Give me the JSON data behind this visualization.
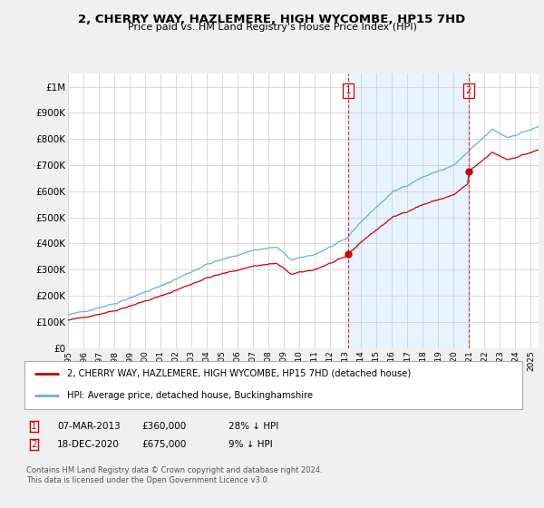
{
  "title": "2, CHERRY WAY, HAZLEMERE, HIGH WYCOMBE, HP15 7HD",
  "subtitle": "Price paid vs. HM Land Registry's House Price Index (HPI)",
  "ylabel_ticks": [
    "£0",
    "£100K",
    "£200K",
    "£300K",
    "£400K",
    "£500K",
    "£600K",
    "£700K",
    "£800K",
    "£900K",
    "£1M"
  ],
  "ytick_values": [
    0,
    100000,
    200000,
    300000,
    400000,
    500000,
    600000,
    700000,
    800000,
    900000,
    1000000
  ],
  "ylim": [
    0,
    1050000
  ],
  "xlim_start": 1995.0,
  "xlim_end": 2025.5,
  "hpi_color": "#6baed6",
  "price_color": "#cc0000",
  "shade_color": "#ddeeff",
  "bg_color": "#f0f0f0",
  "plot_bg_color": "#ffffff",
  "sale1_year": 2013.18,
  "sale1_price": 360000,
  "sale1_label": "07-MAR-2013",
  "sale1_pct": "28% ↓ HPI",
  "sale2_year": 2020.96,
  "sale2_price": 675000,
  "sale2_label": "18-DEC-2020",
  "sale2_pct": "9% ↓ HPI",
  "legend_line1": "2, CHERRY WAY, HAZLEMERE, HIGH WYCOMBE, HP15 7HD (detached house)",
  "legend_line2": "HPI: Average price, detached house, Buckinghamshire",
  "footer1": "Contains HM Land Registry data © Crown copyright and database right 2024.",
  "footer2": "This data is licensed under the Open Government Licence v3.0.",
  "xtick_years": [
    1995,
    1996,
    1997,
    1998,
    1999,
    2000,
    2001,
    2002,
    2003,
    2004,
    2005,
    2006,
    2007,
    2008,
    2009,
    2010,
    2011,
    2012,
    2013,
    2014,
    2015,
    2016,
    2017,
    2018,
    2019,
    2020,
    2021,
    2022,
    2023,
    2024,
    2025
  ]
}
